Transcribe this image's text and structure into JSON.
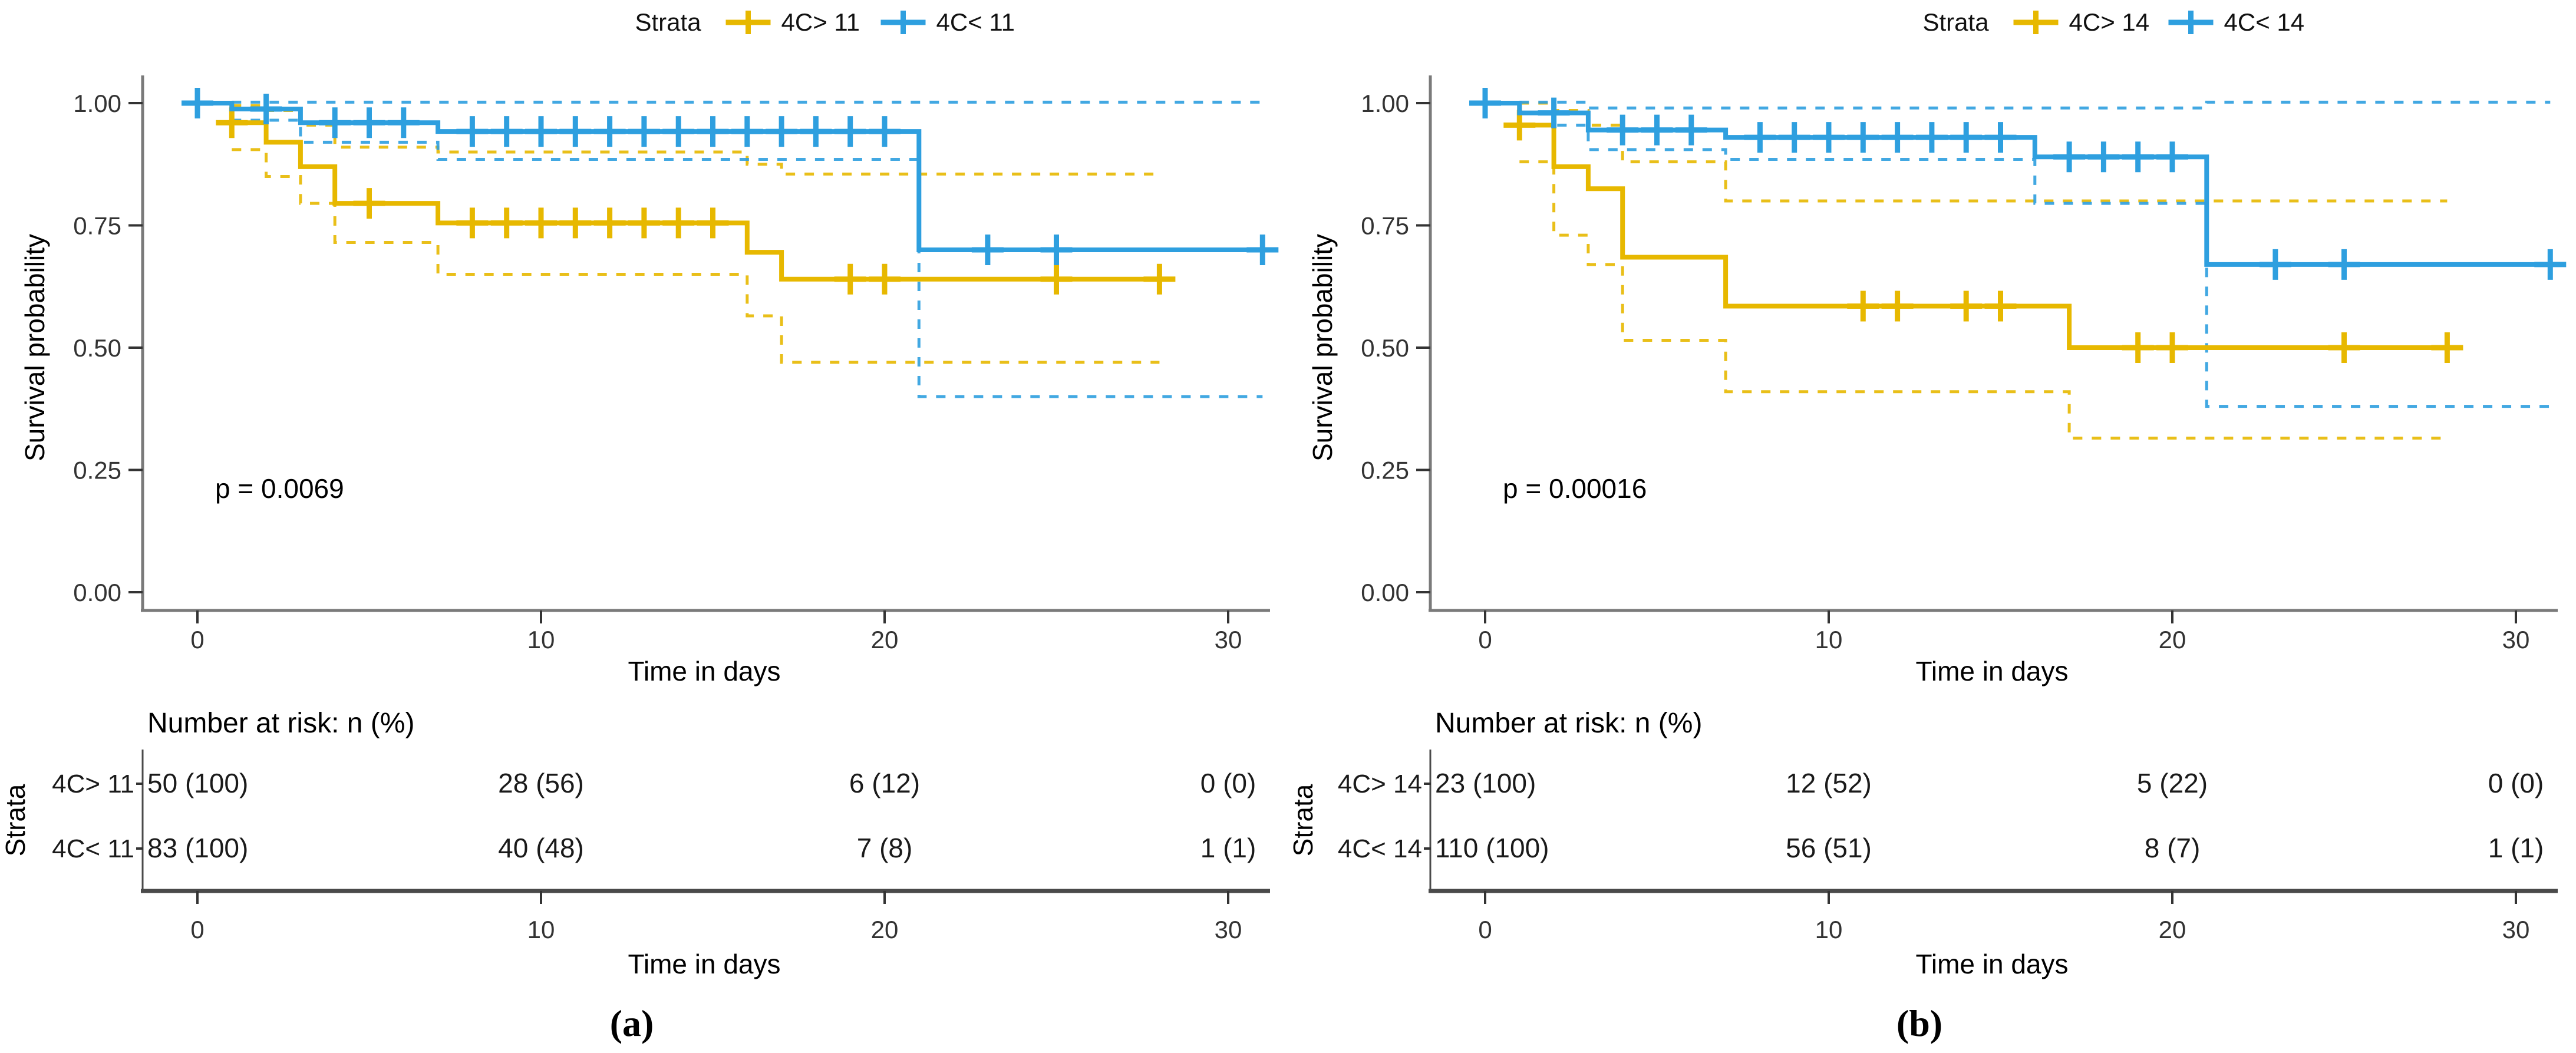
{
  "captions": {
    "a": "(a)",
    "b": "(b)"
  },
  "colors": {
    "stratum_high": "#E7B800",
    "stratum_low": "#2E9FDF",
    "axis": "#7a7a7a",
    "risk_axis": "#4a4a4a",
    "text": "#1a1a1a"
  },
  "chart_data": [
    {
      "type": "line",
      "subtype": "kaplan-meier-survival",
      "panel": "a",
      "legend": {
        "title": "Strata",
        "position": "top",
        "items": [
          {
            "label": "4C> 11",
            "color": "#E7B800"
          },
          {
            "label": "4C< 11",
            "color": "#2E9FDF"
          }
        ]
      },
      "xlabel": "Time in days",
      "ylabel": "Survival probability",
      "xlim": [
        0,
        31
      ],
      "ylim": [
        0,
        1
      ],
      "xticks": [
        0,
        10,
        20,
        30
      ],
      "ytick_labels": [
        "1.00",
        "0.75",
        "0.50",
        "0.25",
        "0.00"
      ],
      "ytick_values": [
        1.0,
        0.75,
        0.5,
        0.25,
        0.0
      ],
      "grid": false,
      "p_value_label": "p = 0.0069",
      "series": [
        {
          "name": "4C> 11",
          "color": "#E7B800",
          "steps": [
            [
              0,
              1.0
            ],
            [
              1,
              0.96
            ],
            [
              2,
              0.92
            ],
            [
              3,
              0.87
            ],
            [
              4,
              0.795
            ],
            [
              7,
              0.755
            ],
            [
              16,
              0.695
            ],
            [
              17,
              0.64
            ]
          ],
          "end_x": 28,
          "censor_x": [
            1,
            5,
            8,
            9,
            10,
            11,
            12,
            13,
            14,
            15,
            19,
            20,
            25,
            28
          ],
          "ci_upper": [
            [
              1,
              0.995
            ],
            [
              2,
              0.985
            ],
            [
              3,
              0.955
            ],
            [
              4,
              0.91
            ],
            [
              7,
              0.9
            ],
            [
              16,
              0.875
            ],
            [
              17,
              0.855
            ]
          ],
          "ci_lower": [
            [
              1,
              0.905
            ],
            [
              2,
              0.85
            ],
            [
              3,
              0.795
            ],
            [
              4,
              0.715
            ],
            [
              7,
              0.65
            ],
            [
              16,
              0.565
            ],
            [
              17,
              0.47
            ]
          ]
        },
        {
          "name": "4C< 11",
          "color": "#2E9FDF",
          "steps": [
            [
              0,
              1.0
            ],
            [
              1,
              0.988
            ],
            [
              3,
              0.96
            ],
            [
              7,
              0.942
            ],
            [
              21,
              0.7
            ]
          ],
          "end_x": 31,
          "censor_x": [
            0,
            2,
            4,
            5,
            6,
            8,
            9,
            10,
            11,
            12,
            13,
            14,
            15,
            16,
            17,
            18,
            19,
            20,
            23,
            25,
            31
          ],
          "ci_upper": [
            [
              1,
              1.002
            ]
          ],
          "ci_lower": [
            [
              1,
              0.965
            ],
            [
              3,
              0.92
            ],
            [
              7,
              0.885
            ],
            [
              21,
              0.4
            ]
          ]
        }
      ],
      "risk_table": {
        "title": "Number at risk: n (%)",
        "axis_label": "Strata",
        "xlabel": "Time in days",
        "xticks": [
          0,
          10,
          20,
          30
        ],
        "rows": [
          {
            "label": "4C> 11",
            "color": "#E7B800",
            "values": [
              "50 (100)",
              "28 (56)",
              "6 (12)",
              "0 (0)"
            ]
          },
          {
            "label": "4C< 11",
            "color": "#2E9FDF",
            "values": [
              "83 (100)",
              "40 (48)",
              "7 (8)",
              "1 (1)"
            ]
          }
        ]
      }
    },
    {
      "type": "line",
      "subtype": "kaplan-meier-survival",
      "panel": "b",
      "legend": {
        "title": "Strata",
        "position": "top",
        "items": [
          {
            "label": "4C> 14",
            "color": "#E7B800"
          },
          {
            "label": "4C< 14",
            "color": "#2E9FDF"
          }
        ]
      },
      "xlabel": "Time in days",
      "ylabel": "Survival probability",
      "xlim": [
        0,
        31
      ],
      "ylim": [
        0,
        1
      ],
      "xticks": [
        0,
        10,
        20,
        30
      ],
      "ytick_labels": [
        "1.00",
        "0.75",
        "0.50",
        "0.25",
        "0.00"
      ],
      "ytick_values": [
        1.0,
        0.75,
        0.5,
        0.25,
        0.0
      ],
      "grid": false,
      "p_value_label": "p = 0.00016",
      "series": [
        {
          "name": "4C> 14",
          "color": "#E7B800",
          "steps": [
            [
              0,
              1.0
            ],
            [
              1,
              0.955
            ],
            [
              2,
              0.87
            ],
            [
              3,
              0.825
            ],
            [
              4,
              0.685
            ],
            [
              7,
              0.585
            ],
            [
              17,
              0.5
            ]
          ],
          "end_x": 28,
          "censor_x": [
            1,
            11,
            12,
            14,
            15,
            19,
            20,
            25,
            28
          ],
          "ci_upper": [
            [
              1,
              1.0
            ],
            [
              2,
              0.985
            ],
            [
              3,
              0.955
            ],
            [
              4,
              0.88
            ],
            [
              7,
              0.8
            ]
          ],
          "ci_lower": [
            [
              1,
              0.88
            ],
            [
              2,
              0.73
            ],
            [
              3,
              0.67
            ],
            [
              4,
              0.515
            ],
            [
              7,
              0.41
            ],
            [
              17,
              0.315
            ]
          ]
        },
        {
          "name": "4C< 14",
          "color": "#2E9FDF",
          "steps": [
            [
              0,
              1.0
            ],
            [
              1,
              0.98
            ],
            [
              3,
              0.945
            ],
            [
              7,
              0.93
            ],
            [
              16,
              0.89
            ],
            [
              21,
              0.67
            ]
          ],
          "end_x": 31,
          "censor_x": [
            0,
            2,
            4,
            5,
            6,
            8,
            9,
            10,
            11,
            12,
            13,
            14,
            15,
            17,
            18,
            19,
            20,
            23,
            25,
            31
          ],
          "ci_upper": [
            [
              1,
              1.002
            ],
            [
              3,
              0.99
            ],
            [
              21,
              1.002
            ]
          ],
          "ci_lower": [
            [
              1,
              0.955
            ],
            [
              3,
              0.905
            ],
            [
              7,
              0.885
            ],
            [
              16,
              0.795
            ],
            [
              21,
              0.38
            ]
          ]
        }
      ],
      "risk_table": {
        "title": "Number at risk: n (%)",
        "axis_label": "Strata",
        "xlabel": "Time in days",
        "xticks": [
          0,
          10,
          20,
          30
        ],
        "rows": [
          {
            "label": "4C> 14",
            "color": "#E7B800",
            "values": [
              "23 (100)",
              "12 (52)",
              "5 (22)",
              "0 (0)"
            ]
          },
          {
            "label": "4C< 14",
            "color": "#2E9FDF",
            "values": [
              "110 (100)",
              "56 (51)",
              "8 (7)",
              "1 (1)"
            ]
          }
        ]
      }
    }
  ]
}
